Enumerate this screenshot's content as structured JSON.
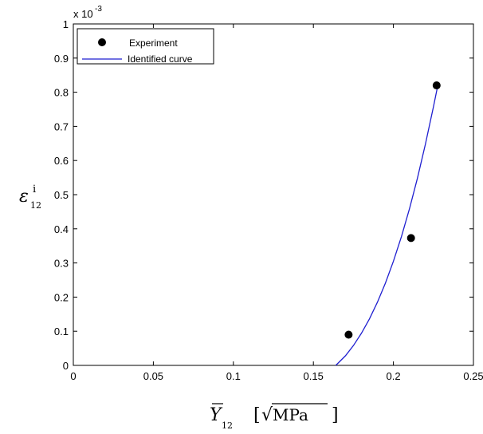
{
  "chart_data": {
    "type": "scatter",
    "title": "",
    "xlim": [
      0,
      0.25
    ],
    "ylim": [
      0,
      1
    ],
    "y_multiplier_label": "x 10",
    "y_multiplier_exponent": "-3",
    "xticks": [
      "0",
      "0.05",
      "0.1",
      "0.15",
      "0.2",
      "0.25"
    ],
    "xtick_values": [
      0,
      0.05,
      0.1,
      0.15,
      0.2,
      0.25
    ],
    "yticks": [
      "0",
      "0.1",
      "0.2",
      "0.3",
      "0.4",
      "0.5",
      "0.6",
      "0.7",
      "0.8",
      "0.9",
      "1"
    ],
    "ytick_values": [
      0,
      0.1,
      0.2,
      0.3,
      0.4,
      0.5,
      0.6,
      0.7,
      0.8,
      0.9,
      1.0
    ],
    "ylabel": {
      "main": "ε",
      "sup": "i",
      "sub": "12"
    },
    "xlabel": {
      "main": "Y",
      "sub": "12",
      "unit_open": "[",
      "unit_sqrt": "√",
      "unit": "MPa",
      "unit_close": "]"
    },
    "legend_position": "top-left",
    "series": [
      {
        "name": "Experiment",
        "kind": "markers",
        "color": "#000000",
        "x": [
          0.172,
          0.211,
          0.227
        ],
        "y": [
          0.09,
          0.373,
          0.82
        ]
      },
      {
        "name": "Identified curve",
        "kind": "line",
        "color": "#1f1fd0",
        "x": [
          0.164,
          0.17,
          0.175,
          0.18,
          0.185,
          0.19,
          0.195,
          0.2,
          0.205,
          0.21,
          0.215,
          0.22,
          0.225,
          0.228
        ],
        "y": [
          0.0,
          0.028,
          0.058,
          0.094,
          0.136,
          0.185,
          0.241,
          0.305,
          0.377,
          0.458,
          0.548,
          0.648,
          0.757,
          0.826
        ]
      }
    ]
  }
}
